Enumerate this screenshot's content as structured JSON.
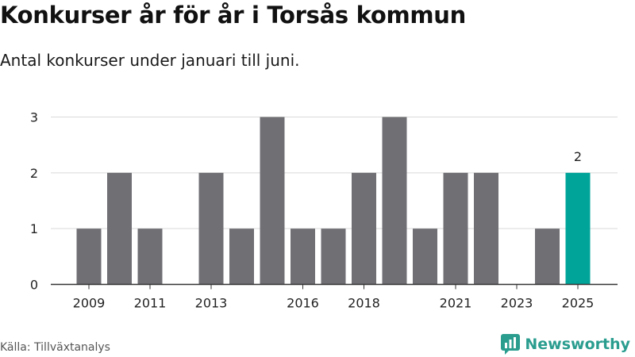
{
  "header": {
    "title": "Konkurser år för år i Torsås kommun",
    "subtitle": "Antal konkurser under januari till juni."
  },
  "footer": {
    "source": "Källa: Tillväxtanalys",
    "brand": "Newsworthy",
    "brand_icon": "newsworthy-logo-icon"
  },
  "colors": {
    "bar": "#706f74",
    "highlight": "#00a499",
    "grid": "#d9d9d9",
    "axis": "#333333",
    "brand": "#2a9d8f"
  },
  "chart_data": {
    "type": "bar",
    "categories": [
      "2009",
      "2010",
      "2011",
      "2012",
      "2013",
      "2014",
      "2015",
      "2016",
      "2017",
      "2018",
      "2019",
      "2020",
      "2021",
      "2022",
      "2023",
      "2024",
      "2025"
    ],
    "values": [
      1,
      2,
      1,
      0,
      2,
      1,
      3,
      1,
      1,
      2,
      3,
      1,
      2,
      2,
      0,
      1,
      2
    ],
    "x_tick_labels": [
      "2009",
      "2011",
      "2013",
      "2016",
      "2018",
      "2021",
      "2023",
      "2025"
    ],
    "y_ticks": [
      0,
      1,
      2,
      3
    ],
    "ylim": [
      0,
      3
    ],
    "highlight_category": "2025",
    "data_labels": [
      {
        "category": "2025",
        "text": "2"
      }
    ],
    "grid": true,
    "xlabel": "",
    "ylabel": "",
    "legend": "none"
  }
}
